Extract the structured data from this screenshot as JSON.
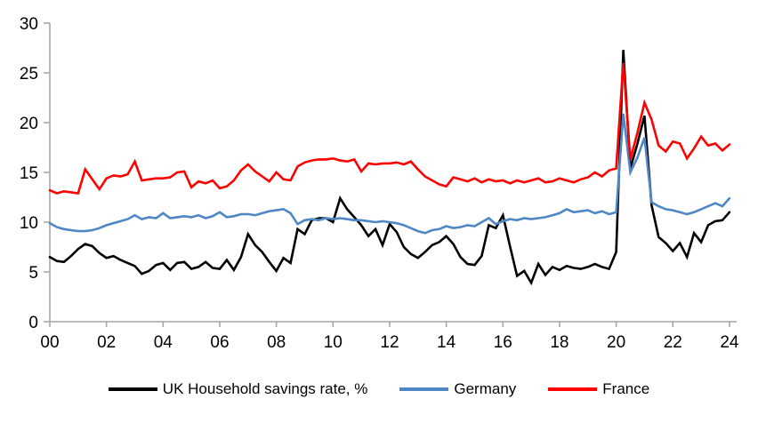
{
  "chart_data": {
    "type": "line",
    "title": "",
    "grid": false,
    "legend_position": "bottom",
    "axis_color": "#a6a6a6",
    "label_color": "#000000",
    "x_start_year": 2000,
    "x_step_years": 0.25,
    "x_axis": {
      "tick_years": [
        0,
        2,
        4,
        6,
        8,
        10,
        12,
        14,
        16,
        18,
        20,
        22,
        24
      ],
      "tick_labels": [
        "00",
        "02",
        "04",
        "06",
        "08",
        "10",
        "12",
        "14",
        "16",
        "18",
        "20",
        "22",
        "24"
      ]
    },
    "y_axis": {
      "ticks": [
        0,
        5,
        10,
        15,
        20,
        25,
        30
      ],
      "tick_labels": [
        "0",
        "5",
        "10",
        "15",
        "20",
        "25",
        "30"
      ],
      "range": [
        0,
        30
      ]
    },
    "series": [
      {
        "name": "UK Household savings rate, %",
        "color": "#000000",
        "values": [
          6.5,
          6.1,
          6.0,
          6.6,
          7.3,
          7.8,
          7.6,
          6.9,
          6.4,
          6.6,
          6.2,
          5.9,
          5.6,
          4.8,
          5.1,
          5.7,
          5.9,
          5.2,
          5.9,
          6.0,
          5.3,
          5.5,
          6.0,
          5.4,
          5.3,
          6.2,
          5.2,
          6.5,
          8.8,
          7.7,
          7.0,
          6.0,
          5.1,
          6.4,
          5.9,
          9.3,
          8.8,
          10.2,
          10.4,
          10.4,
          10.0,
          12.4,
          11.3,
          10.5,
          9.7,
          8.6,
          9.3,
          7.7,
          9.8,
          9.0,
          7.5,
          6.8,
          6.4,
          7.0,
          7.7,
          8.0,
          8.6,
          7.8,
          6.5,
          5.8,
          5.7,
          6.6,
          9.7,
          9.4,
          10.7,
          7.6,
          4.6,
          5.1,
          3.9,
          5.8,
          4.7,
          5.5,
          5.2,
          5.6,
          5.4,
          5.3,
          5.5,
          5.8,
          5.5,
          5.3,
          7.0,
          27.3,
          15.4,
          17.9,
          20.7,
          11.7,
          8.5,
          7.9,
          7.1,
          7.9,
          6.5,
          8.9,
          8.0,
          9.7,
          10.1,
          10.2,
          11.0
        ]
      },
      {
        "name": "Germany",
        "color": "#4e86c6",
        "values": [
          9.9,
          9.5,
          9.3,
          9.2,
          9.1,
          9.1,
          9.2,
          9.4,
          9.7,
          9.9,
          10.1,
          10.3,
          10.7,
          10.3,
          10.5,
          10.4,
          10.9,
          10.4,
          10.5,
          10.6,
          10.5,
          10.7,
          10.4,
          10.6,
          11.0,
          10.5,
          10.6,
          10.8,
          10.8,
          10.7,
          10.9,
          11.1,
          11.2,
          11.3,
          10.9,
          9.8,
          10.2,
          10.3,
          10.2,
          10.4,
          10.3,
          10.4,
          10.3,
          10.2,
          10.2,
          10.1,
          10.0,
          10.1,
          10.0,
          9.9,
          9.7,
          9.4,
          9.1,
          8.9,
          9.2,
          9.3,
          9.6,
          9.4,
          9.5,
          9.7,
          9.6,
          10.0,
          10.4,
          9.8,
          10.1,
          10.3,
          10.2,
          10.4,
          10.3,
          10.4,
          10.5,
          10.7,
          10.9,
          11.3,
          11.0,
          11.1,
          11.2,
          10.9,
          11.1,
          10.8,
          11.0,
          20.9,
          15.0,
          16.5,
          18.5,
          12.0,
          11.6,
          11.3,
          11.2,
          11.0,
          10.8,
          11.0,
          11.3,
          11.6,
          11.9,
          11.6,
          12.4
        ]
      },
      {
        "name": "France",
        "color": "#ff0000",
        "values": [
          13.2,
          12.9,
          13.1,
          13.0,
          12.9,
          15.3,
          14.3,
          13.3,
          14.4,
          14.7,
          14.6,
          14.8,
          16.1,
          14.2,
          14.3,
          14.4,
          14.4,
          14.5,
          15.0,
          15.1,
          13.5,
          14.1,
          13.9,
          14.2,
          13.4,
          13.6,
          14.2,
          15.2,
          15.8,
          15.1,
          14.6,
          14.1,
          15.0,
          14.3,
          14.2,
          15.6,
          16.0,
          16.2,
          16.3,
          16.3,
          16.4,
          16.2,
          16.1,
          16.3,
          15.1,
          15.9,
          15.8,
          15.9,
          15.9,
          16.0,
          15.8,
          16.1,
          15.3,
          14.6,
          14.2,
          13.8,
          13.6,
          14.5,
          14.3,
          14.1,
          14.4,
          14.0,
          14.3,
          14.1,
          14.2,
          13.9,
          14.2,
          14.0,
          14.2,
          14.4,
          14.0,
          14.1,
          14.4,
          14.2,
          14.0,
          14.3,
          14.5,
          15.0,
          14.6,
          15.2,
          15.4,
          26.0,
          16.3,
          19.0,
          22.0,
          20.3,
          17.7,
          17.1,
          18.1,
          17.9,
          16.4,
          17.4,
          18.6,
          17.7,
          17.9,
          17.2,
          17.8
        ]
      }
    ]
  }
}
